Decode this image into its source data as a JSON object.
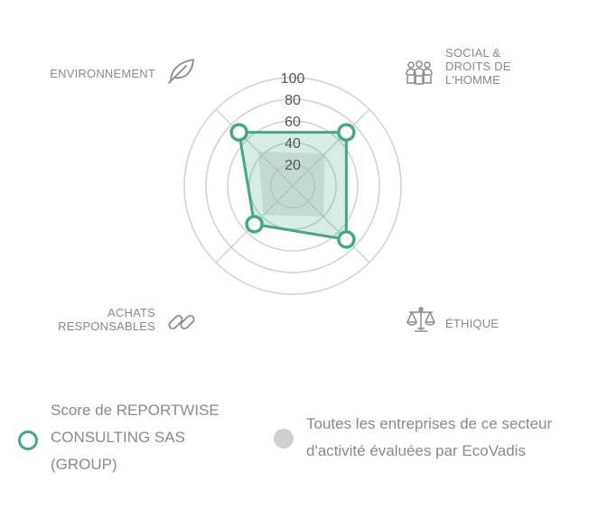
{
  "chart_data": {
    "type": "radar",
    "axes": [
      "ENVIRONNEMENT",
      "SOCIAL & DROITS DE L'HOMME",
      "ÉTHIQUE",
      "ACHATS RESPONSABLES"
    ],
    "tick_labels": [
      "20",
      "40",
      "60",
      "80",
      "100"
    ],
    "rlim": [
      0,
      100
    ],
    "grid": true,
    "legend_position": "bottom",
    "series": [
      {
        "name": "Score de REPORTWISE CONSULTING SAS (GROUP)",
        "values": [
          70,
          70,
          70,
          50
        ],
        "color": "#44a883"
      },
      {
        "name": "Toutes les entreprises de ce secteur d'activité évaluées par EcoVadis",
        "values": [
          45,
          42,
          40,
          38
        ],
        "color": "#cfcfcf"
      }
    ]
  },
  "labels": {
    "env": [
      "ENVIRONNEMENT"
    ],
    "social": [
      "SOCIAL &",
      "DROITS DE",
      "L'HOMME"
    ],
    "ethique": [
      "ÉTHIQUE"
    ],
    "achats": [
      "ACHATS",
      "RESPONSABLES"
    ]
  },
  "icons": {
    "env": "leaf-icon",
    "social": "people-group-icon",
    "ethique": "scales-icon",
    "achats": "chain-link-icon"
  },
  "legend": {
    "company": [
      "Score de REPORTWISE",
      "CONSULTING SAS",
      "(GROUP)"
    ],
    "sector": [
      "Toutes les entreprises de ce secteur",
      "d'activité évaluées par EcoVadis"
    ]
  }
}
